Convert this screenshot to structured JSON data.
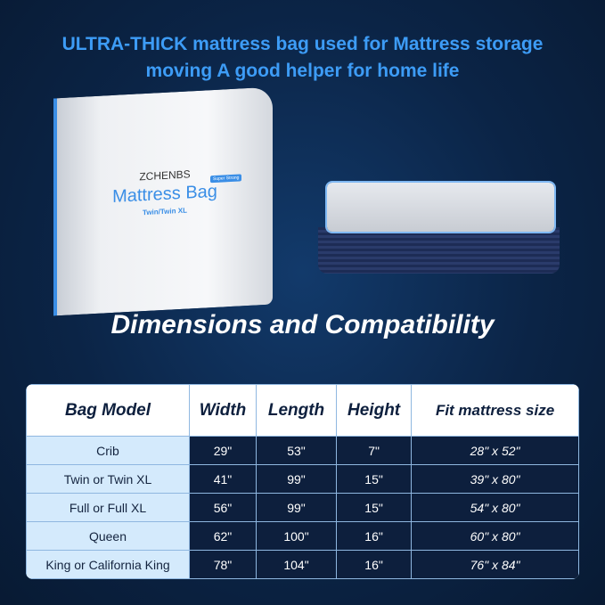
{
  "headline": {
    "line1": "ULTRA-THICK mattress bag used for Mattress storage",
    "line2": "moving A good helper for home life"
  },
  "product": {
    "brand": "ZCHENBS",
    "title": "Mattress Bag",
    "size": "Twin/Twin XL",
    "badge": "Super Strong"
  },
  "subtitle": "Dimensions and Compatibility",
  "table": {
    "headers": [
      "Bag Model",
      "Width",
      "Length",
      "Height",
      "Fit mattress size"
    ],
    "rows": [
      [
        "Crib",
        "29\"",
        "53\"",
        "7\"",
        "28\" x 52\""
      ],
      [
        "Twin or Twin XL",
        "41\"",
        "99\"",
        "15\"",
        "39\" x 80\""
      ],
      [
        "Full or Full XL",
        "56\"",
        "99\"",
        "15\"",
        "54\" x 80\""
      ],
      [
        "Queen",
        "62\"",
        "100\"",
        "16\"",
        "60\" x 80\""
      ],
      [
        "King or California King",
        "78\"",
        "104\"",
        "16\"",
        "76\" x 84\""
      ]
    ]
  },
  "colors": {
    "accent": "#3d9cf6",
    "background": "#0b2446",
    "table_dark": "#0d1f3d",
    "table_light": "#d4eafc"
  }
}
